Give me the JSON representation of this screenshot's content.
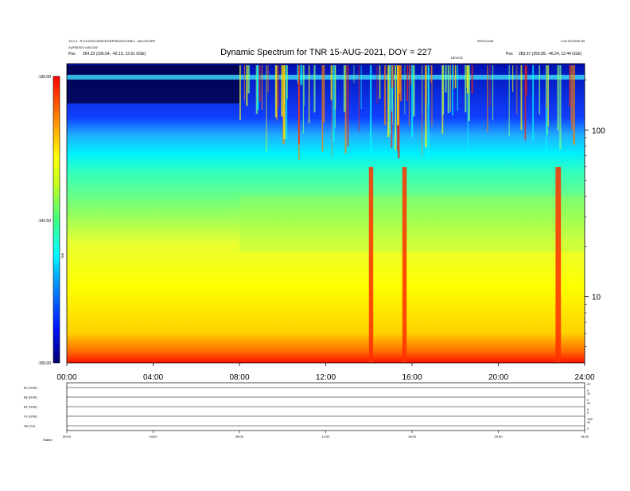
{
  "chart_data": [
    {
      "type": "heatmap",
      "title": "Dynamic Spectrum for TNR 15-AUG-2021, DOY = 227",
      "header_left": [
        "19.0.3 - R:XX:\\D0C\\SPACEGRP\\RDS\\DC\\DBX - ### D0\\GRP",
        "AUFB1903 o:B0-002"
      ],
      "header_right": [
        "RFDG1345",
        "LOS ROOMS B0"
      ],
      "pos_label": "Pos",
      "pos_left": "264.22 (236.54, -42.10, 12.61 GSE)",
      "pos_right": "283.67 (259.89, -46.24, 12.44 GSE)",
      "marker_label": "DEVICE",
      "colorbar": {
        "min": -155.0,
        "mid": -142.5,
        "max": -130.0,
        "tick_labels": [
          "-130.00",
          "-142.50",
          "-155.00"
        ],
        "label": "TNR"
      },
      "x_tick_labels": [
        "00:00",
        "04:00",
        "08:00",
        "12:00",
        "16:00",
        "20:00",
        "24:00"
      ],
      "x_range_hours": [
        0,
        24
      ],
      "y_scale": "log",
      "y_tick_labels": [
        "100",
        "10"
      ],
      "y_ticks": [
        100,
        10
      ],
      "y_range": [
        4,
        250
      ],
      "features": [
        {
          "kind": "burst",
          "start_hour": 14.0,
          "end_hour": 14.2
        },
        {
          "kind": "burst",
          "start_hour": 15.55,
          "end_hour": 15.75
        },
        {
          "kind": "burst",
          "start_hour": 22.65,
          "end_hour": 22.9
        }
      ]
    },
    {
      "type": "line",
      "panels": [
        {
          "label": "Bx (GSE)",
          "right_ticks": [
            "20",
            "0"
          ]
        },
        {
          "label": "By (GSE)",
          "right_ticks": [
            "20",
            "0"
          ]
        },
        {
          "label": "Bz (GSE)",
          "right_ticks": [
            "20",
            "0"
          ]
        },
        {
          "label": "Vx (GSE)",
          "right_ticks": [
            "0",
            "-500"
          ]
        },
        {
          "label": "Np (/cc)",
          "right_ticks": [
            "40",
            "0"
          ]
        }
      ],
      "x_tick_labels": [
        "00:00",
        "04:00",
        "08:00",
        "12:00",
        "16:00",
        "20:00",
        "24:00"
      ],
      "status_label": "Status"
    }
  ]
}
